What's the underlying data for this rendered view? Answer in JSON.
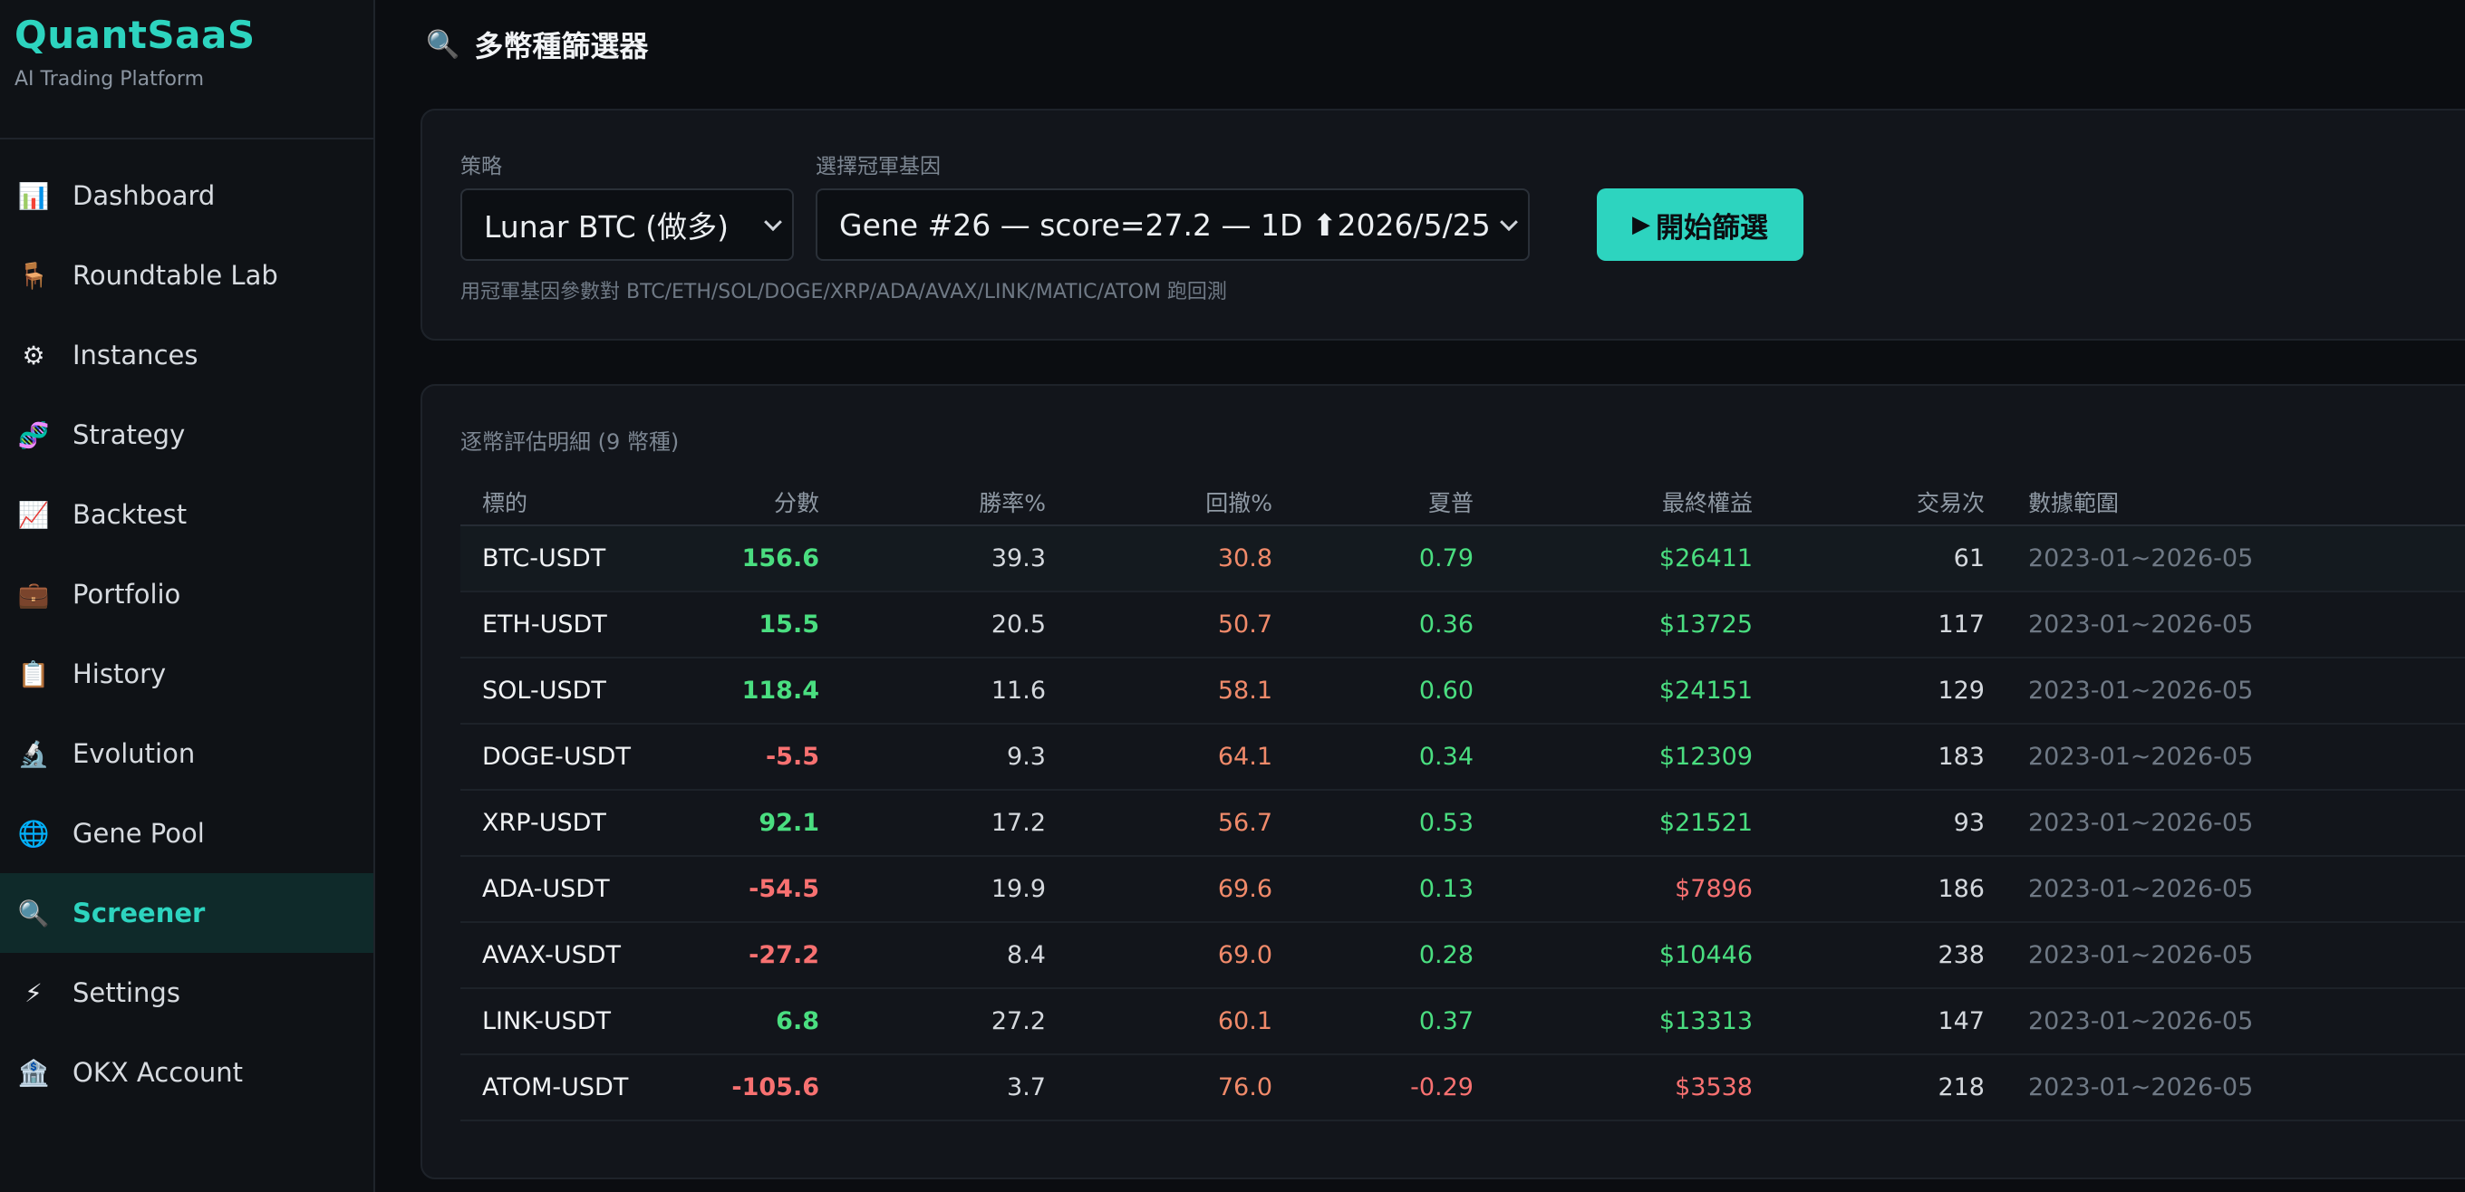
{
  "brand": {
    "title": "QuantSaaS",
    "subtitle": "AI Trading Platform"
  },
  "sidebar": {
    "items": [
      {
        "label": "Dashboard",
        "icon": "bar-chart-icon",
        "glyph": "📊",
        "active": false
      },
      {
        "label": "Roundtable Lab",
        "icon": "chair-icon",
        "glyph": "🪑",
        "active": false
      },
      {
        "label": "Instances",
        "icon": "gear-icon",
        "glyph": "⚙",
        "active": false
      },
      {
        "label": "Strategy",
        "icon": "dna-icon",
        "glyph": "🧬",
        "active": false
      },
      {
        "label": "Backtest",
        "icon": "chart-up-icon",
        "glyph": "📈",
        "active": false
      },
      {
        "label": "Portfolio",
        "icon": "briefcase-icon",
        "glyph": "💼",
        "active": false
      },
      {
        "label": "History",
        "icon": "clipboard-icon",
        "glyph": "📋",
        "active": false
      },
      {
        "label": "Evolution",
        "icon": "microscope-icon",
        "glyph": "🔬",
        "active": false
      },
      {
        "label": "Gene Pool",
        "icon": "globe-icon",
        "glyph": "🌐",
        "active": false
      },
      {
        "label": "Screener",
        "icon": "magnifier-icon",
        "glyph": "🔍",
        "active": true
      },
      {
        "label": "Settings",
        "icon": "lightning-icon",
        "glyph": "⚡",
        "active": false
      },
      {
        "label": "OKX Account",
        "icon": "bank-icon",
        "glyph": "🏦",
        "active": false
      }
    ]
  },
  "header": {
    "title": "多幣種篩選器",
    "icon": "magnifier-icon",
    "glyph": "🔍"
  },
  "controls": {
    "strategy_label": "策略",
    "strategy_value": "Lunar BTC (做多)",
    "gene_label": "選擇冠軍基因",
    "gene_value": "Gene #26 — score=27.2 — 1D ⬆2026/5/25",
    "run_label": "開始篩選",
    "run_glyph": "▶",
    "hint": "用冠軍基因參數對 BTC/ETH/SOL/DOGE/XRP/ADA/AVAX/LINK/MATIC/ATOM 跑回測"
  },
  "results": {
    "title": "逐幣評估明細 (9 幣種)",
    "columns": [
      "標的",
      "分數",
      "勝率%",
      "回撤%",
      "夏普",
      "最終權益",
      "交易次",
      "數據範圍"
    ],
    "rows": [
      {
        "symbol": "BTC-USDT",
        "score": "156.6",
        "win": "39.3",
        "dd": "30.8",
        "sharpe": "0.79",
        "equity": "$26411",
        "trades": "61",
        "range": "2023-01~2026-05"
      },
      {
        "symbol": "ETH-USDT",
        "score": "15.5",
        "win": "20.5",
        "dd": "50.7",
        "sharpe": "0.36",
        "equity": "$13725",
        "trades": "117",
        "range": "2023-01~2026-05"
      },
      {
        "symbol": "SOL-USDT",
        "score": "118.4",
        "win": "11.6",
        "dd": "58.1",
        "sharpe": "0.60",
        "equity": "$24151",
        "trades": "129",
        "range": "2023-01~2026-05"
      },
      {
        "symbol": "DOGE-USDT",
        "score": "-5.5",
        "win": "9.3",
        "dd": "64.1",
        "sharpe": "0.34",
        "equity": "$12309",
        "trades": "183",
        "range": "2023-01~2026-05"
      },
      {
        "symbol": "XRP-USDT",
        "score": "92.1",
        "win": "17.2",
        "dd": "56.7",
        "sharpe": "0.53",
        "equity": "$21521",
        "trades": "93",
        "range": "2023-01~2026-05"
      },
      {
        "symbol": "ADA-USDT",
        "score": "-54.5",
        "win": "19.9",
        "dd": "69.6",
        "sharpe": "0.13",
        "equity": "$7896",
        "trades": "186",
        "range": "2023-01~2026-05"
      },
      {
        "symbol": "AVAX-USDT",
        "score": "-27.2",
        "win": "8.4",
        "dd": "69.0",
        "sharpe": "0.28",
        "equity": "$10446",
        "trades": "238",
        "range": "2023-01~2026-05"
      },
      {
        "symbol": "LINK-USDT",
        "score": "6.8",
        "win": "27.2",
        "dd": "60.1",
        "sharpe": "0.37",
        "equity": "$13313",
        "trades": "147",
        "range": "2023-01~2026-05"
      },
      {
        "symbol": "ATOM-USDT",
        "score": "-105.6",
        "win": "3.7",
        "dd": "76.0",
        "sharpe": "-0.29",
        "equity": "$3538",
        "trades": "218",
        "range": "2023-01~2026-05"
      }
    ]
  },
  "colors": {
    "accent": "#2dd4bf",
    "positive": "#4ade80",
    "negative": "#f87171",
    "drawdown": "#f08a6a"
  }
}
